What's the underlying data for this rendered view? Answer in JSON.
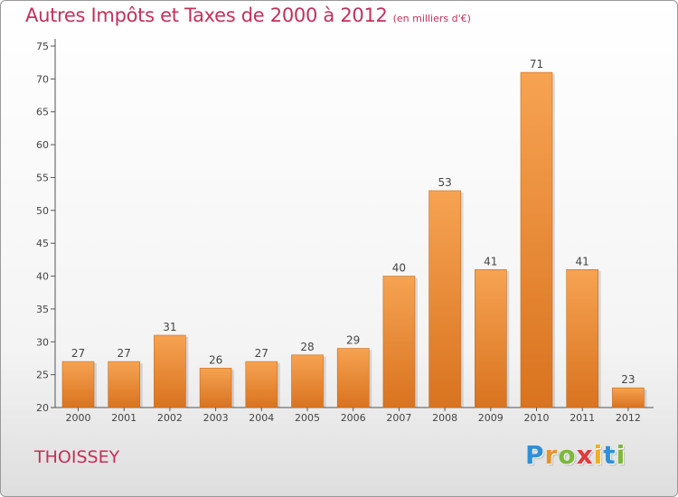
{
  "header": {
    "title": "Autres Impôts et Taxes de 2000 à 2012",
    "subtitle": "(en milliers d'€)"
  },
  "footer": {
    "commune": "THOISSEY",
    "logo": {
      "letters": [
        "P",
        "r",
        "o",
        "x",
        "i",
        "t",
        "i"
      ],
      "colors": [
        "#2f8fd8",
        "#e8922a",
        "#7cb83a",
        "#e03a3a",
        "#f0b020",
        "#2f8fd8",
        "#7cb83a"
      ]
    }
  },
  "chart_data": {
    "type": "bar",
    "categories": [
      "2000",
      "2001",
      "2002",
      "2003",
      "2004",
      "2005",
      "2006",
      "2007",
      "2008",
      "2009",
      "2010",
      "2011",
      "2012"
    ],
    "values": [
      27,
      27,
      31,
      26,
      27,
      28,
      29,
      40,
      53,
      41,
      71,
      41,
      23
    ],
    "data_labels": [
      "27",
      "27",
      "31",
      "26",
      "27",
      "28",
      "29",
      "40",
      "53",
      "41",
      "71",
      "41",
      "23"
    ],
    "yticks": [
      "20",
      "25",
      "30",
      "35",
      "40",
      "45",
      "50",
      "55",
      "60",
      "65",
      "70",
      "75"
    ],
    "ylim": [
      20,
      75
    ],
    "grid": false,
    "colors": {
      "bar_light": "#f6a352",
      "bar_dark": "#d9731f",
      "axis": "#555555"
    }
  }
}
